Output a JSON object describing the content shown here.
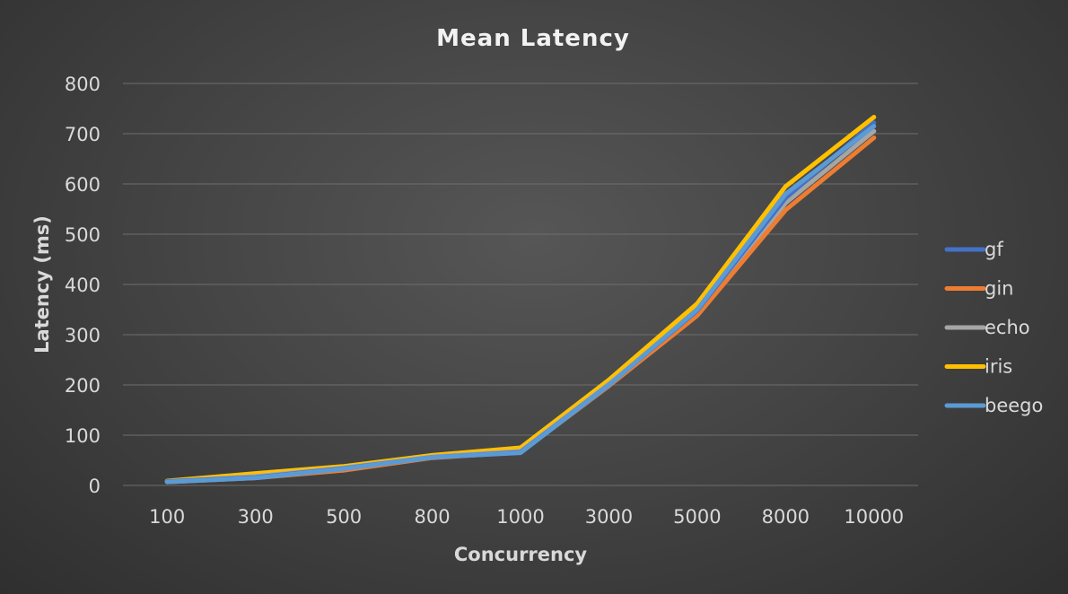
{
  "chart_data": {
    "type": "line",
    "title": "Mean Latency",
    "xlabel": "Concurrency",
    "ylabel": "Latency (ms)",
    "categories": [
      "100",
      "300",
      "500",
      "800",
      "1000",
      "3000",
      "5000",
      "8000",
      "10000"
    ],
    "ylim": [
      0,
      800
    ],
    "yticks": [
      0,
      100,
      200,
      300,
      400,
      500,
      600,
      700,
      800
    ],
    "grid": true,
    "legend_position": "right",
    "series": [
      {
        "name": "gf",
        "color": "#4472C4",
        "values": [
          8,
          16,
          34,
          56,
          66,
          200,
          348,
          572,
          722
        ]
      },
      {
        "name": "gin",
        "color": "#ED7D31",
        "values": [
          7,
          15,
          30,
          55,
          66,
          198,
          338,
          548,
          692
        ]
      },
      {
        "name": "echo",
        "color": "#A5A5A5",
        "values": [
          8,
          18,
          35,
          57,
          68,
          202,
          345,
          562,
          705
        ]
      },
      {
        "name": "iris",
        "color": "#FFC000",
        "values": [
          9,
          24,
          38,
          60,
          75,
          210,
          362,
          595,
          733
        ]
      },
      {
        "name": "beego",
        "color": "#5B9BD5",
        "values": [
          7,
          15,
          33,
          56,
          65,
          200,
          350,
          580,
          715
        ]
      }
    ]
  }
}
